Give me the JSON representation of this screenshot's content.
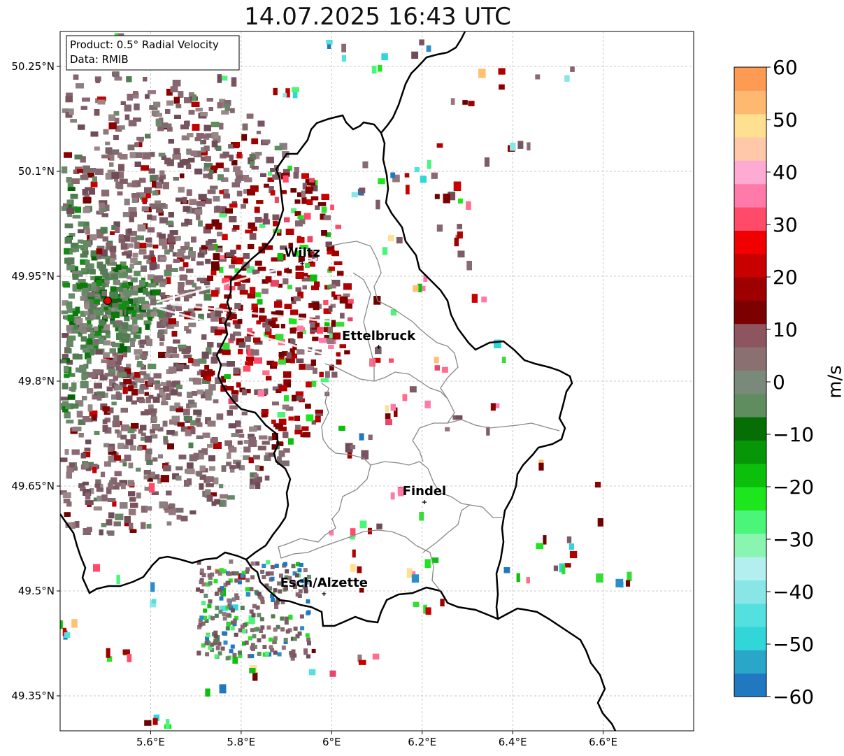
{
  "title": "14.07.2025 16:43 UTC",
  "info_box": {
    "line1": "Product: 0.5° Radial Velocity",
    "line2": "Data: RMIB"
  },
  "map": {
    "lon_range": [
      5.4,
      6.8
    ],
    "lat_range": [
      49.3,
      50.3
    ],
    "x_ticks": [
      {
        "value": 5.6,
        "label": "5.6°E"
      },
      {
        "value": 5.8,
        "label": "5.8°E"
      },
      {
        "value": 6.0,
        "label": "6°E"
      },
      {
        "value": 6.2,
        "label": "6.2°E"
      },
      {
        "value": 6.4,
        "label": "6.4°E"
      },
      {
        "value": 6.6,
        "label": "6.6°E"
      }
    ],
    "y_ticks": [
      {
        "value": 50.25,
        "label": "50.25°N"
      },
      {
        "value": 50.1,
        "label": "50.1°N"
      },
      {
        "value": 49.95,
        "label": "49.95°N"
      },
      {
        "value": 49.8,
        "label": "49.8°N"
      },
      {
        "value": 49.65,
        "label": "49.65°N"
      },
      {
        "value": 49.5,
        "label": "49.5°N"
      },
      {
        "value": 49.35,
        "label": "49.35°N"
      }
    ],
    "radar_site": {
      "lon": 5.505,
      "lat": 49.915
    },
    "cities": [
      {
        "name": "Wiltz",
        "lon": 5.935,
        "lat": 49.968
      },
      {
        "name": "Ettelbruck",
        "lon": 6.104,
        "lat": 49.849
      },
      {
        "name": "Findel",
        "lon": 6.205,
        "lat": 49.627
      },
      {
        "name": "Esch/Alzette",
        "lon": 5.983,
        "lat": 49.496
      }
    ],
    "gridlines": true
  },
  "colorbar": {
    "label": "m/s",
    "min": -60,
    "max": 60,
    "ticks": [
      {
        "value": 60,
        "label": "60"
      },
      {
        "value": 50,
        "label": "50"
      },
      {
        "value": 40,
        "label": "40"
      },
      {
        "value": 30,
        "label": "30"
      },
      {
        "value": 20,
        "label": "20"
      },
      {
        "value": 10,
        "label": "10"
      },
      {
        "value": 0,
        "label": "0"
      },
      {
        "value": -10,
        "label": "−10"
      },
      {
        "value": -20,
        "label": "−20"
      },
      {
        "value": -30,
        "label": "−30"
      },
      {
        "value": -40,
        "label": "−40"
      },
      {
        "value": -50,
        "label": "−50"
      },
      {
        "value": -60,
        "label": "−60"
      }
    ],
    "colors": [
      "#1f78c0",
      "#2aa6c8",
      "#31d6d8",
      "#55e0e0",
      "#8ae6e6",
      "#b4efef",
      "#8af5b0",
      "#4af57a",
      "#1ee61e",
      "#0bbf0b",
      "#079607",
      "#056e05",
      "#5f8d5f",
      "#7a8a7a",
      "#8a7070",
      "#8c5560",
      "#7c0000",
      "#9e0000",
      "#c80000",
      "#f00000",
      "#ff4a6a",
      "#ff7aa8",
      "#ffaad2",
      "#ffc8a8",
      "#ffe090",
      "#ffb870",
      "#ff9a55"
    ]
  },
  "legend_colors": {
    "inbound_green": "#1ee61e",
    "outbound_red": "#8b0000",
    "nearzero_mauve": "#8a6a72",
    "nearzero_green": "#5f8d5f"
  }
}
